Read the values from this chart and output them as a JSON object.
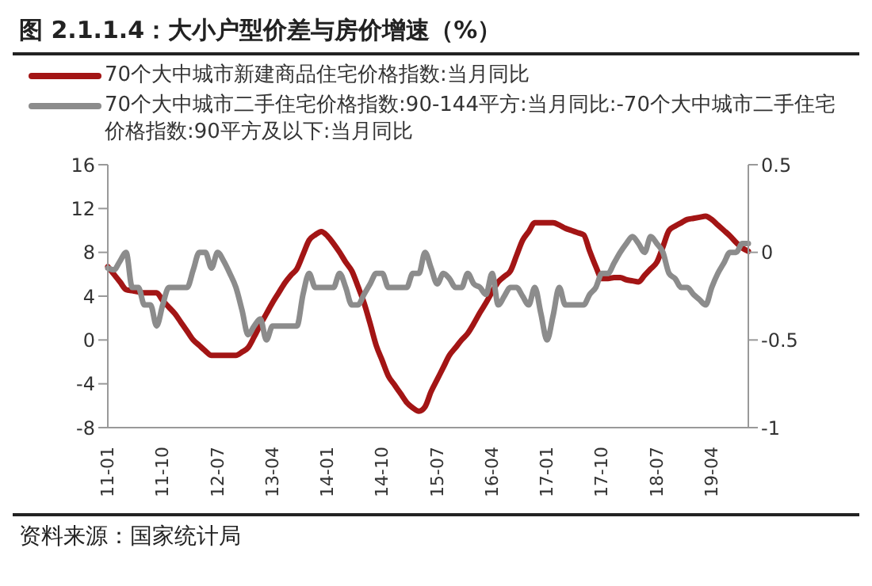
{
  "chart_data": {
    "type": "line",
    "title": "图 2.1.1.4：大小户型价差与房价增速（%）",
    "categories": [
      "11-01",
      null,
      null,
      null,
      null,
      null,
      null,
      null,
      null,
      "11-10",
      null,
      null,
      null,
      null,
      null,
      null,
      null,
      null,
      "12-07",
      null,
      null,
      null,
      null,
      null,
      null,
      null,
      null,
      "13-04",
      null,
      null,
      null,
      null,
      null,
      null,
      null,
      null,
      "14-01",
      null,
      null,
      null,
      null,
      null,
      null,
      null,
      null,
      "14-10",
      null,
      null,
      null,
      null,
      null,
      null,
      null,
      null,
      "15-07",
      null,
      null,
      null,
      null,
      null,
      null,
      null,
      null,
      "16-04",
      null,
      null,
      null,
      null,
      null,
      null,
      null,
      null,
      "17-01",
      null,
      null,
      null,
      null,
      null,
      null,
      null,
      null,
      "17-10",
      null,
      null,
      null,
      null,
      null,
      null,
      null,
      null,
      "18-07",
      null,
      null,
      null,
      null,
      null,
      null,
      null,
      null,
      "19-04",
      null,
      null,
      null,
      null,
      null,
      null
    ],
    "series": [
      {
        "name": "70个大中城市新建商品住宅价格指数:当月同比",
        "color": "#a31515",
        "values": [
          6.7,
          6,
          5.3,
          4.6,
          4.5,
          4.4,
          4.3,
          4.3,
          4.3,
          3.6,
          3,
          2.4,
          1.6,
          0.8,
          0,
          -0.5,
          -1,
          -1.4,
          -1.4,
          -1.4,
          -1.4,
          -1.4,
          -1.1,
          -0.7,
          0.3,
          1.4,
          2.4,
          3.4,
          4.3,
          5.2,
          5.9,
          6.5,
          7.8,
          9.1,
          9.6,
          9.9,
          9.5,
          8.8,
          8,
          7.1,
          6.3,
          4.9,
          3.4,
          1.5,
          -0.5,
          -1.9,
          -3.3,
          -4.1,
          -4.9,
          -5.7,
          -6.2,
          -6.5,
          -6.1,
          -4.7,
          -3.6,
          -2.5,
          -1.4,
          -0.7,
          0,
          0.6,
          1.5,
          2.5,
          3.4,
          4.4,
          5.3,
          5.8,
          6.3,
          7.7,
          9.1,
          9.9,
          10.7,
          10.7,
          10.7,
          10.7,
          10.5,
          10.2,
          10,
          9.8,
          9.6,
          8.1,
          6.7,
          5.6,
          5.6,
          5.7,
          5.7,
          5.5,
          5.4,
          5.3,
          5.9,
          6.5,
          7.1,
          8.5,
          10,
          10.4,
          10.7,
          11,
          11.1,
          11.2,
          11.3,
          11,
          10.5,
          10,
          9.5,
          8.9,
          8.4,
          8.1
        ]
      },
      {
        "name": "70个大中城市二手住宅价格指数:90-144平方:当月同比:-70个大中城市二手住宅价格指数:90平方及以下:当月同比",
        "color": "#8c8c8c",
        "axis": "y2",
        "values": [
          -0.09,
          -0.1,
          -0.05,
          0,
          -0.2,
          -0.2,
          -0.3,
          -0.3,
          -0.42,
          -0.3,
          -0.2,
          -0.2,
          -0.2,
          -0.2,
          -0.1,
          0,
          0,
          -0.09,
          0,
          -0.05,
          -0.12,
          -0.2,
          -0.33,
          -0.47,
          -0.42,
          -0.38,
          -0.5,
          -0.42,
          -0.42,
          -0.42,
          -0.42,
          -0.42,
          -0.24,
          -0.12,
          -0.2,
          -0.2,
          -0.2,
          -0.2,
          -0.12,
          -0.2,
          -0.3,
          -0.3,
          -0.24,
          -0.18,
          -0.12,
          -0.12,
          -0.2,
          -0.2,
          -0.2,
          -0.2,
          -0.12,
          -0.12,
          0,
          -0.09,
          -0.18,
          -0.12,
          -0.15,
          -0.2,
          -0.2,
          -0.12,
          -0.18,
          -0.2,
          -0.24,
          -0.12,
          -0.3,
          -0.25,
          -0.2,
          -0.2,
          -0.25,
          -0.3,
          -0.2,
          -0.35,
          -0.5,
          -0.36,
          -0.2,
          -0.3,
          -0.3,
          -0.3,
          -0.3,
          -0.24,
          -0.2,
          -0.12,
          -0.12,
          -0.06,
          0,
          0.05,
          0.09,
          0.05,
          0,
          0.09,
          0.05,
          0,
          -0.12,
          -0.15,
          -0.2,
          -0.2,
          -0.24,
          -0.27,
          -0.3,
          -0.2,
          -0.12,
          -0.06,
          0,
          0,
          0.05,
          0.05
        ]
      }
    ],
    "ylim": [
      -8,
      16
    ],
    "yticks": [
      -8,
      -4,
      0,
      4,
      8,
      12,
      16
    ],
    "y2lim": [
      -1,
      0.5
    ],
    "y2ticks": [
      -1,
      -0.5,
      0,
      0.5
    ],
    "grid": false,
    "legend": "top",
    "marker": "none",
    "line_style": "solid",
    "annotations": [
      "资料来源：国家统计局"
    ]
  }
}
